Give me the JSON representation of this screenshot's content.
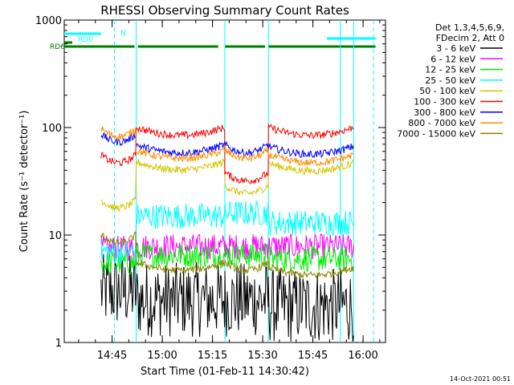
{
  "chart_data": {
    "type": "line",
    "title": "RHESSI Observing Summary Count Rates",
    "xlabel": "Start Time (01-Feb-11 14:30:42)",
    "ylabel": "Count Rate (s⁻¹ detector⁻¹)",
    "y_scale": "log",
    "ylim": [
      1,
      1000
    ],
    "xlim_minutes": [
      0,
      96
    ],
    "y_ticks": [
      {
        "value": 1,
        "label": "1"
      },
      {
        "value": 10,
        "label": "10"
      },
      {
        "value": 100,
        "label": "100"
      },
      {
        "value": 1000,
        "label": "1000"
      }
    ],
    "x_ticks": [
      {
        "minute": 14.3,
        "label": "14:45"
      },
      {
        "minute": 29.3,
        "label": "15:00"
      },
      {
        "minute": 44.3,
        "label": "15:15"
      },
      {
        "minute": 59.3,
        "label": "15:30"
      },
      {
        "minute": 74.3,
        "label": "15:45"
      },
      {
        "minute": 89.3,
        "label": "16:00"
      }
    ],
    "legend": {
      "placement": "right",
      "header": [
        "Det 1,3,4,5,6,9,",
        "FDecim 2, Att 0"
      ]
    },
    "segments": [
      [
        11,
        21.5
      ],
      [
        21.5,
        48
      ],
      [
        48,
        61
      ],
      [
        61,
        86.5
      ]
    ],
    "series": [
      {
        "name": "3 - 6 keV",
        "color": "#000000",
        "values": [
          3,
          2.5,
          2.5,
          2.2
        ]
      },
      {
        "name": "6 - 12 keV",
        "color": "#ff00ff",
        "values": [
          7.5,
          7.8,
          7.8,
          7.8
        ]
      },
      {
        "name": "12 - 25 keV",
        "color": "#00ee00",
        "values": [
          5.5,
          6.5,
          6.5,
          6
        ]
      },
      {
        "name": "25 - 50 keV",
        "color": "#00ffff",
        "values": [
          7,
          15,
          16,
          13
        ]
      },
      {
        "name": "50 - 100 keV",
        "color": "#d4c400",
        "values": [
          19,
          43,
          26,
          42
        ]
      },
      {
        "name": "100 - 300 keV",
        "color": "#ff0000",
        "values": [
          50,
          90,
          34,
          90
        ]
      },
      {
        "name": "300 - 800 keV",
        "color": "#0000ff",
        "values": [
          78,
          62,
          62,
          60
        ]
      },
      {
        "name": "800 - 7000 keV",
        "color": "#ff8c00",
        "values": [
          88,
          55,
          55,
          50
        ]
      },
      {
        "name": "7000 - 15000 keV",
        "color": "#8b8000",
        "values": [
          9,
          5,
          5,
          4.5
        ]
      }
    ],
    "annotations": {
      "bars": [
        {
          "label": "RD0",
          "color": "#00ffff",
          "ranges": [
            [
              0,
              11
            ]
          ]
        },
        {
          "label": "N",
          "color": "#00ffff",
          "ranges": [
            [
              78.5,
              93
            ]
          ]
        },
        {
          "label": "RD0",
          "color": "#007f00",
          "ranges": [
            [
              4,
              21
            ],
            [
              22,
              46
            ],
            [
              48,
              60
            ],
            [
              61,
              93
            ]
          ]
        },
        {
          "label": "RD6",
          "color": "#007f00",
          "ranges": [
            [
              0,
              4
            ]
          ]
        }
      ],
      "vertical_lines": [
        {
          "minute": 15,
          "color": "#00ffff",
          "style": "dashed"
        },
        {
          "minute": 21.5,
          "color": "#00ffff",
          "style": "solid"
        },
        {
          "minute": 48,
          "color": "#00ffff",
          "style": "solid"
        },
        {
          "minute": 61,
          "color": "#00ffff",
          "style": "solid"
        },
        {
          "minute": 82.5,
          "color": "#00ffff",
          "style": "solid"
        },
        {
          "minute": 86.5,
          "color": "#00ffff",
          "style": "solid"
        },
        {
          "minute": 97,
          "color": "#00ffff",
          "style": "dashed"
        }
      ]
    },
    "timestamp": "14-Oct-2021 00:51"
  }
}
